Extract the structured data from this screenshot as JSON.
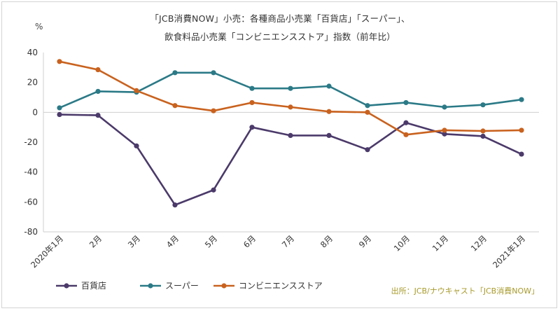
{
  "chart_data": {
    "type": "line",
    "title_line1": "「JCB消費NOW」小売：各種商品小売業「百貨店」「スーパー」、",
    "title_line2": "飲食料品小売業「コンビニエンスストア」指数（前年比）",
    "ylabel": "%",
    "ylim": [
      -80,
      40
    ],
    "yticks": [
      40,
      20,
      0,
      -20,
      -40,
      -60,
      -80
    ],
    "categories": [
      "2020年1月",
      "2月",
      "3月",
      "4月",
      "5月",
      "6月",
      "7月",
      "8月",
      "9月",
      "10月",
      "11月",
      "12月",
      "2021年1月"
    ],
    "series": [
      {
        "name": "百貨店",
        "color": "#4b3a6a",
        "values": [
          -1.5,
          -2,
          -22.5,
          -62,
          -52,
          -10,
          -15.5,
          -15.5,
          -25,
          -7,
          -14.5,
          -16,
          -28
        ]
      },
      {
        "name": "スーパー",
        "color": "#2b7a87",
        "values": [
          3,
          14,
          13.5,
          26.5,
          26.5,
          16,
          16,
          17.5,
          4.5,
          6.5,
          3.5,
          5,
          8.5
        ]
      },
      {
        "name": "コンビニエンスストア",
        "color": "#c9621e",
        "values": [
          34,
          28.5,
          14.5,
          4.5,
          1,
          6.5,
          3.5,
          0.5,
          0,
          -15,
          -12,
          -12.5,
          -12
        ]
      }
    ],
    "legend_position": "bottom-left",
    "source": "出所：JCB/ナウキャスト「JCB消費NOW」",
    "grid": "horizontal-zero-line"
  }
}
